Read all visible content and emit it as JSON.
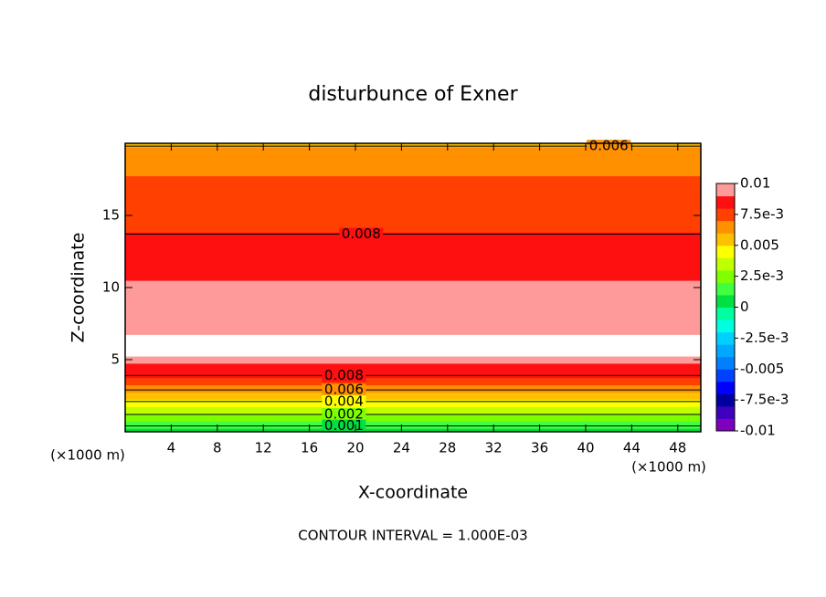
{
  "chart_data": {
    "type": "contour",
    "title": "disturbunce of Exner",
    "x_label": "X-coordinate",
    "y_label": "Z-coordinate",
    "x_unit_label": "(×1000 m)",
    "y_unit_label": "(×1000 m)",
    "footer": "CONTOUR INTERVAL = 1.000E-03",
    "xlim": [
      0,
      50
    ],
    "xticks": [
      4,
      8,
      12,
      16,
      20,
      24,
      28,
      32,
      36,
      40,
      44,
      48
    ],
    "ylim": [
      0,
      20
    ],
    "yticks": [
      5,
      10,
      15
    ],
    "profile": {
      "z": [
        0,
        0.5,
        1,
        1.5,
        2,
        2.5,
        3,
        3.5,
        4,
        4.5,
        5,
        5.5,
        6,
        6.5,
        7,
        7.5,
        8,
        9,
        10,
        11,
        12,
        13,
        13.7,
        14,
        15,
        16,
        17,
        17.5,
        18,
        19,
        19.5,
        20
      ],
      "values": [
        0.0002,
        0.0012,
        0.0022,
        0.0032,
        0.0042,
        0.0052,
        0.0062,
        0.0072,
        0.0082,
        0.0088,
        0.0095,
        0.0102,
        0.0105,
        0.0103,
        0.0099,
        0.0097,
        0.0096,
        0.0094,
        0.0091,
        0.0089,
        0.0086,
        0.0082,
        0.008,
        0.0079,
        0.0077,
        0.0074,
        0.0072,
        0.007,
        0.0068,
        0.0064,
        0.0061,
        0.0058
      ]
    },
    "contour_labels": [
      {
        "level": 0.006,
        "x": 42,
        "z": 19.8
      },
      {
        "level": 0.008,
        "x": 20.5,
        "z": 13.7
      },
      {
        "level": 0.008,
        "x": 19,
        "z": 3.9
      },
      {
        "level": 0.006,
        "x": 19,
        "z": 2.9
      },
      {
        "level": 0.004,
        "x": 19,
        "z": 2.1
      },
      {
        "level": 0.002,
        "x": 19,
        "z": 1.2
      },
      {
        "level": 0.001,
        "x": 19,
        "z": 0.4
      }
    ],
    "clim": [
      -0.01,
      0.01
    ],
    "colors": [
      "#8000c0",
      "#4000c0",
      "#0000a0",
      "#0000ff",
      "#0040ff",
      "#0080ff",
      "#00a8ff",
      "#00d0ff",
      "#00ffe0",
      "#00ffa0",
      "#00e040",
      "#40ff40",
      "#80ff00",
      "#c0ff00",
      "#ffff00",
      "#ffc000",
      "#ff9000",
      "#ff4000",
      "#ff1010",
      "#ff9a9a"
    ],
    "over_color": "#ffffff",
    "colorbar_ticks": [
      0.01,
      {
        "value": 0.0075,
        "label": "7.5e-3"
      },
      0.005,
      {
        "value": 0.0025,
        "label": "2.5e-3"
      },
      0,
      {
        "value": -0.0025,
        "label": "-2.5e-3"
      },
      -0.005,
      {
        "value": -0.0075,
        "label": "-7.5e-3"
      },
      -0.01
    ]
  }
}
